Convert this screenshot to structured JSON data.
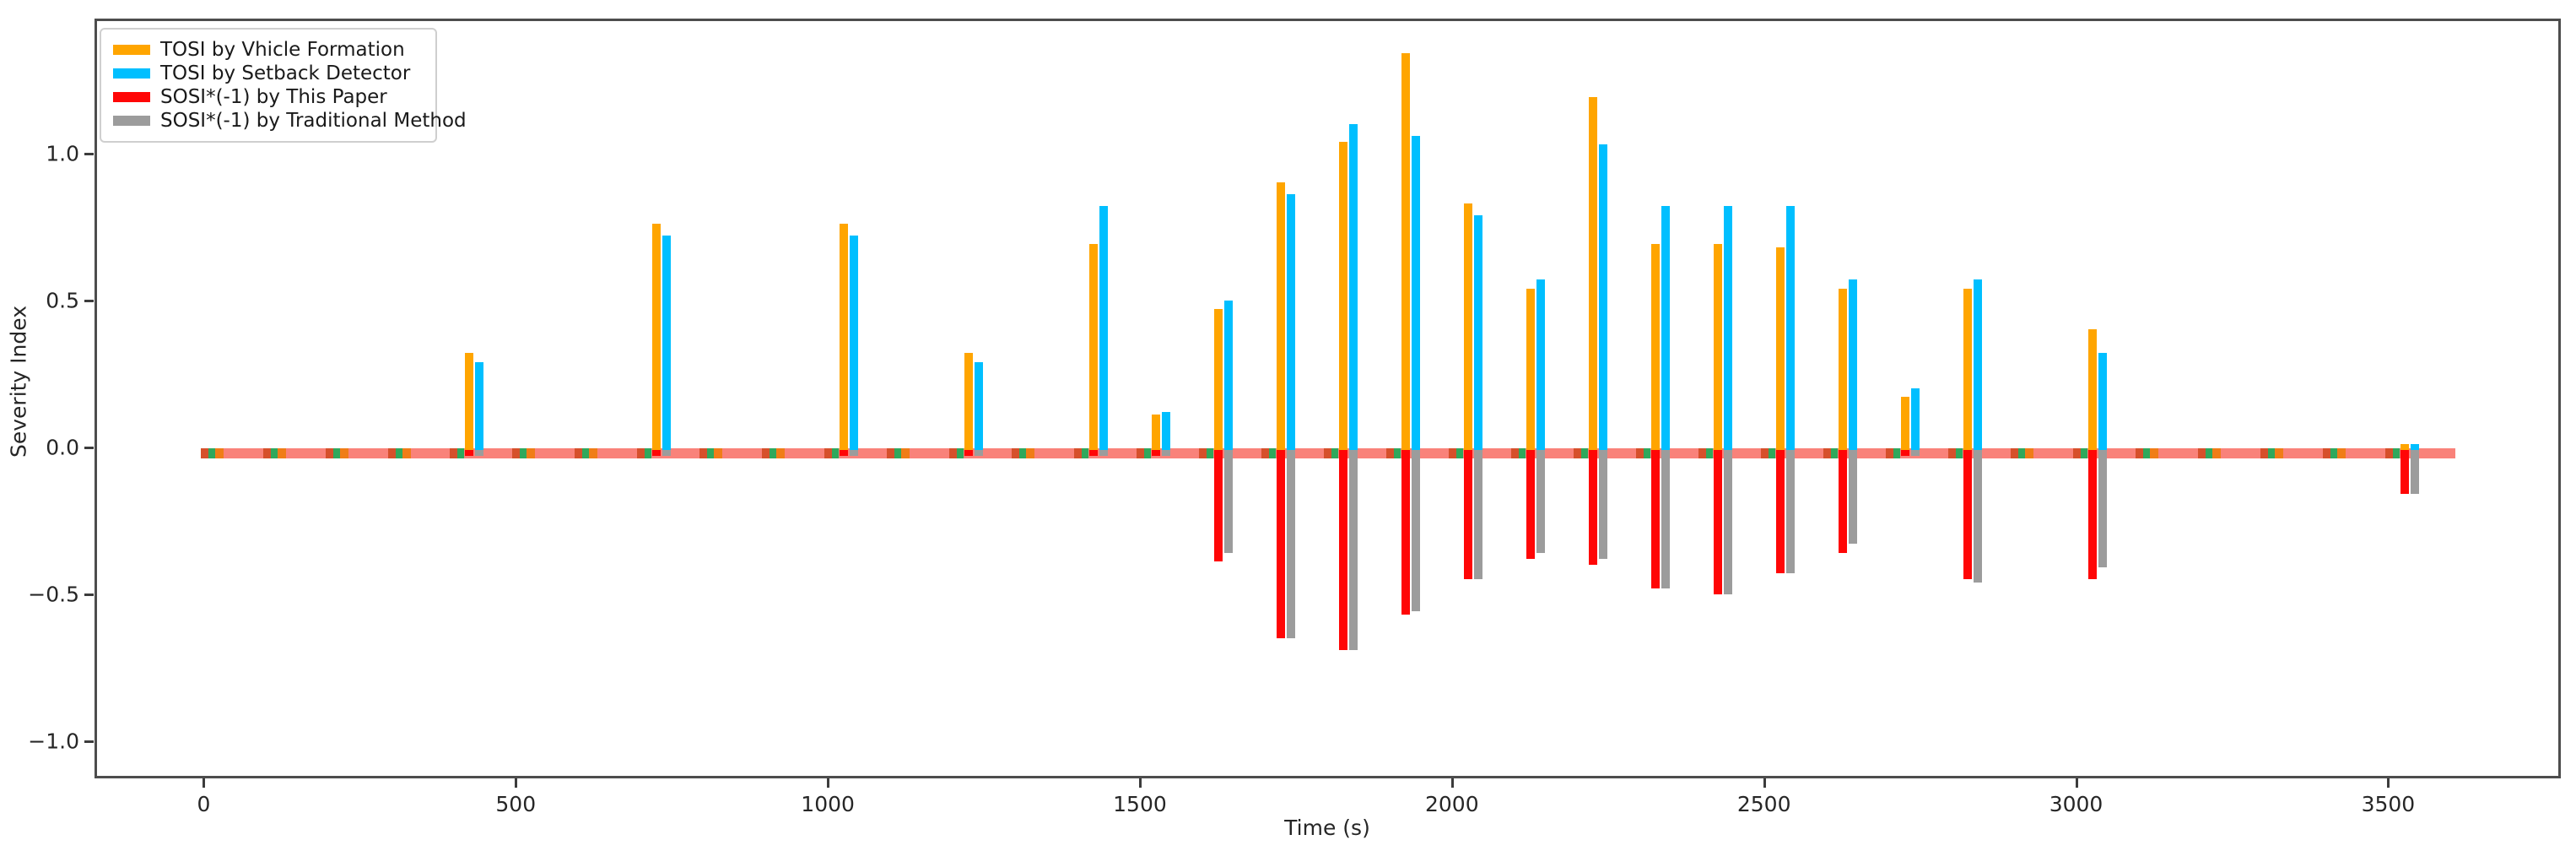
{
  "figure": {
    "xlabel": "Time (s)",
    "ylabel": "Severity Index",
    "x_tick_labels": [
      "0",
      "500",
      "1000",
      "1500",
      "2000",
      "2500",
      "3000",
      "3500"
    ],
    "y_tick_labels": [
      "1.0",
      "0.5",
      "0.0",
      "−0.5",
      "−1.0"
    ]
  },
  "legend": {
    "items": [
      {
        "label": "TOSI by Vhicle Formation",
        "color": "#FFA500"
      },
      {
        "label": "TOSI by Setback Detector",
        "color": "#00BFFF"
      },
      {
        "label": "SOSI*(-1) by This Paper",
        "color": "#FF0606"
      },
      {
        "label": "SOSI*(-1) by Traditional Method",
        "color": "#9C9C9C"
      }
    ]
  },
  "chart_data": {
    "type": "bar",
    "title": "",
    "xlabel": "Time (s)",
    "ylabel": "Severity Index",
    "xlim": [
      -170,
      3780
    ],
    "ylim": [
      -1.13,
      1.46
    ],
    "x_ticks": [
      0,
      500,
      1000,
      1500,
      2000,
      2500,
      3000,
      3500
    ],
    "y_ticks": [
      1.0,
      0.5,
      0.0,
      -0.5,
      -1.0
    ],
    "grid": false,
    "legend_position": "upper left",
    "bar_width_seconds": 14,
    "cluster_times": [
      430,
      730,
      1030,
      1230,
      1430,
      1530,
      1630,
      1730,
      1830,
      1930,
      2030,
      2130,
      2230,
      2330,
      2430,
      2530,
      2630,
      2730,
      2830,
      3030,
      3530
    ],
    "series": [
      {
        "name": "TOSI by Vhicle Formation",
        "color": "#FFA500",
        "values": [
          0.33,
          0.77,
          0.77,
          0.33,
          0.7,
          0.12,
          0.48,
          0.91,
          1.05,
          1.35,
          0.84,
          0.55,
          1.2,
          0.7,
          0.7,
          0.69,
          0.55,
          0.18,
          0.55,
          0.41,
          0.02
        ]
      },
      {
        "name": "TOSI by Setback Detector",
        "color": "#00BFFF",
        "values": [
          0.3,
          0.73,
          0.73,
          0.3,
          0.83,
          0.13,
          0.51,
          0.87,
          1.11,
          1.07,
          0.8,
          0.58,
          1.04,
          0.83,
          0.83,
          0.83,
          0.58,
          0.21,
          0.58,
          0.33,
          0.02
        ]
      },
      {
        "name": "SOSI*(-1) by This Paper",
        "color": "#FF0606",
        "values": [
          -0.02,
          -0.02,
          -0.02,
          -0.02,
          -0.02,
          -0.02,
          -0.38,
          -0.64,
          -0.68,
          -0.56,
          -0.44,
          -0.37,
          -0.39,
          -0.47,
          -0.49,
          -0.42,
          -0.35,
          -0.02,
          -0.44,
          -0.44,
          -0.15
        ]
      },
      {
        "name": "SOSI*(-1) by Traditional Method",
        "color": "#9C9C9C",
        "values": [
          -0.02,
          -0.02,
          -0.02,
          -0.02,
          -0.02,
          -0.02,
          -0.35,
          -0.64,
          -0.68,
          -0.55,
          -0.44,
          -0.35,
          -0.37,
          -0.47,
          -0.49,
          -0.42,
          -0.32,
          -0.02,
          -0.45,
          -0.4,
          -0.15
        ]
      }
    ],
    "baseline_band": {
      "t_start": -5,
      "t_end": 3603,
      "color": "#F9827A",
      "approx_value_range": [
        0.005,
        -0.03
      ]
    },
    "minor_marks": {
      "times": [
        30,
        130,
        230,
        330,
        530,
        630,
        830,
        930,
        1130,
        1330,
        2930,
        3130,
        3230,
        3330,
        3430
      ],
      "colors": [
        "#D6502B",
        "#2FA85C",
        "#F07D17"
      ]
    }
  }
}
